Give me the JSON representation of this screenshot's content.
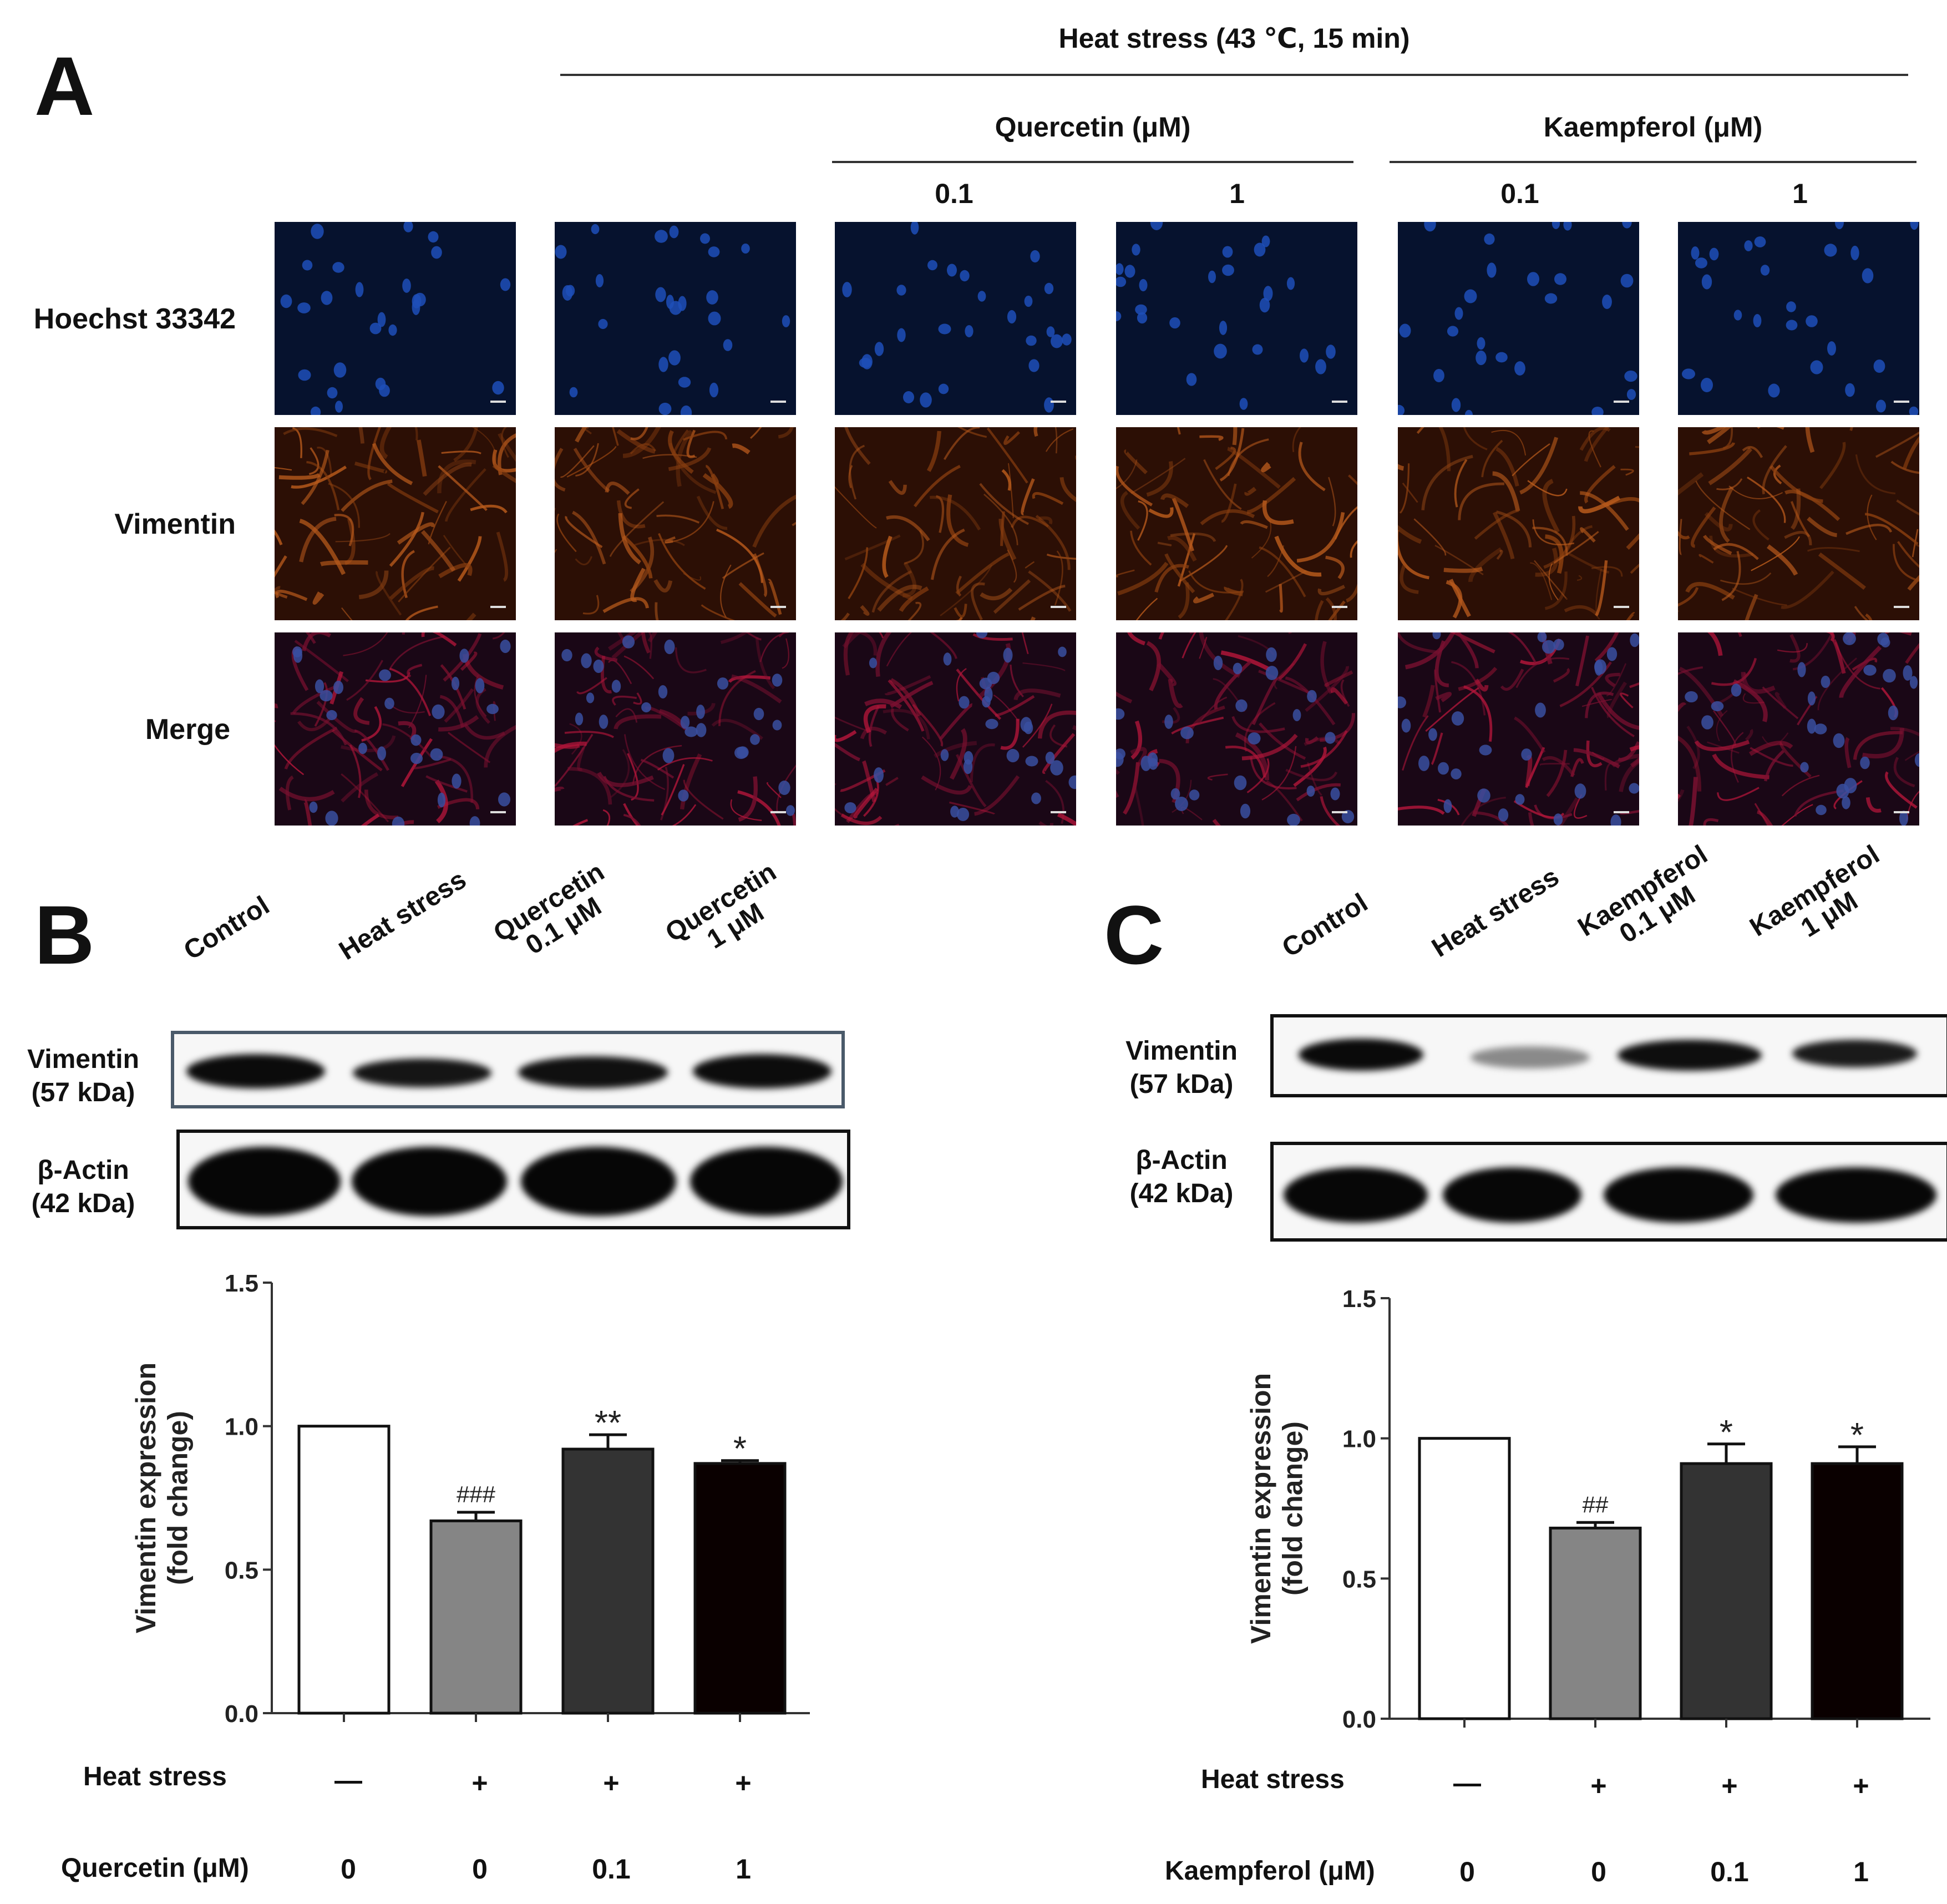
{
  "panel_a": {
    "letter": "A",
    "heat_stress_header": "Heat stress (43 ℃, 15 min)",
    "quercetin_header": "Quercetin (μM)",
    "kaempferol_header": "Kaempferol (μM)",
    "concentrations": [
      "0.1",
      "1",
      "0.1",
      "1"
    ],
    "row_labels": [
      "Hoechst 33342",
      "Vimentin",
      "Merge"
    ]
  },
  "panel_b": {
    "letter": "B",
    "lanes": [
      {
        "line1": "Control",
        "line2": ""
      },
      {
        "line1": "Heat stress",
        "line2": ""
      },
      {
        "line1": "Quercetin",
        "line2": "0.1 μM"
      },
      {
        "line1": "Quercetin",
        "line2": "1 μM"
      }
    ],
    "blot1_label": [
      "Vimentin",
      "(57 kDa)"
    ],
    "blot2_label": [
      "β-Actin",
      "(42 kDa)"
    ],
    "cond_row1_label": "Heat stress",
    "cond_row1_values": [
      "—",
      "+",
      "+",
      "+"
    ],
    "cond_row2_label": "Quercetin (μM)",
    "cond_row2_values": [
      "0",
      "0",
      "0.1",
      "1"
    ]
  },
  "panel_c": {
    "letter": "C",
    "lanes": [
      {
        "line1": "Control",
        "line2": ""
      },
      {
        "line1": "Heat stress",
        "line2": ""
      },
      {
        "line1": "Kaempferol",
        "line2": "0.1 μM"
      },
      {
        "line1": "Kaempferol",
        "line2": "1 μM"
      }
    ],
    "blot1_label": [
      "Vimentin",
      "(57 kDa)"
    ],
    "blot2_label": [
      "β-Actin",
      "(42 kDa)"
    ],
    "cond_row1_label": "Heat stress",
    "cond_row1_values": [
      "—",
      "+",
      "+",
      "+"
    ],
    "cond_row2_label": "Kaempferol (μM)",
    "cond_row2_values": [
      "0",
      "0",
      "0.1",
      "1"
    ]
  },
  "chart_data": [
    {
      "type": "bar",
      "panel": "B",
      "categories": [
        "Control",
        "Heat stress",
        "Quercetin 0.1 μM",
        "Quercetin 1 μM"
      ],
      "values": [
        1.0,
        0.67,
        0.92,
        0.87
      ],
      "errors": [
        0,
        0.03,
        0.05,
        0.01
      ],
      "annotations": [
        "",
        "###",
        "**",
        "*"
      ],
      "bar_colors": [
        "#ffffff",
        "#858585",
        "#333333",
        "#0a0000"
      ],
      "ylabel": "Vimentin expression (fold change)",
      "ylim": [
        0.0,
        1.5
      ],
      "yticks": [
        "0.0",
        "0.5",
        "1.0",
        "1.5"
      ]
    },
    {
      "type": "bar",
      "panel": "C",
      "categories": [
        "Control",
        "Heat stress",
        "Kaempferol 0.1 μM",
        "Kaempferol 1 μM"
      ],
      "values": [
        1.0,
        0.68,
        0.91,
        0.91
      ],
      "errors": [
        0,
        0.02,
        0.07,
        0.06
      ],
      "annotations": [
        "",
        "##",
        "*",
        "*"
      ],
      "bar_colors": [
        "#ffffff",
        "#858585",
        "#333333",
        "#0a0000"
      ],
      "ylabel": "Vimentin expression (fold change)",
      "ylim": [
        0.0,
        1.5
      ],
      "yticks": [
        "0.0",
        "0.5",
        "1.0",
        "1.5"
      ]
    }
  ]
}
